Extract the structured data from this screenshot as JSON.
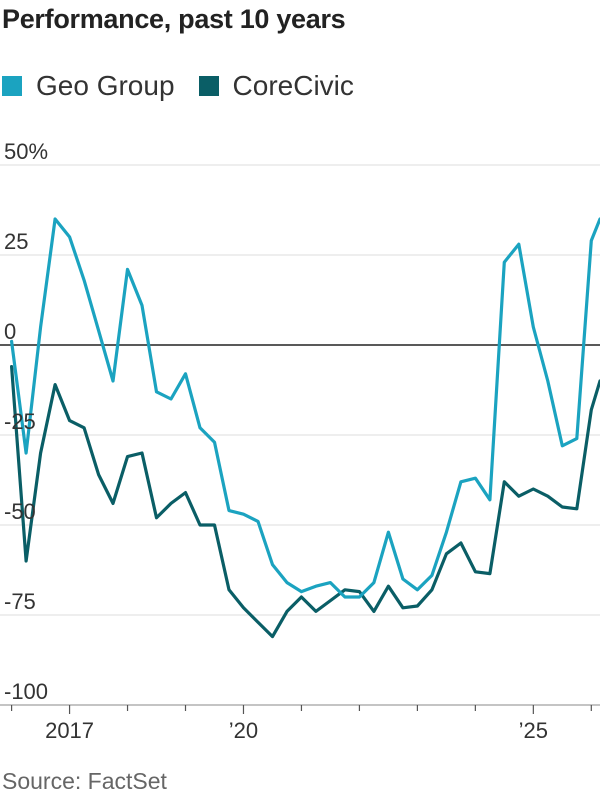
{
  "header": {
    "title": "Performance, past 10 years"
  },
  "footer": {
    "source": "Source: FactSet"
  },
  "colors": {
    "geo": "#1ba3c0",
    "corecivic": "#0a5e66",
    "grid": "#dddddd",
    "zero": "#222222",
    "axis": "#888888"
  },
  "chart_data": {
    "type": "line",
    "title": "Performance, past 10 years",
    "xlabel": "",
    "ylabel": "",
    "ylim": [
      -100,
      50
    ],
    "xlim": [
      2015.8,
      2026.15
    ],
    "y_ticks": [
      {
        "value": 50,
        "label": "50%"
      },
      {
        "value": 25,
        "label": "25"
      },
      {
        "value": 0,
        "label": "0"
      },
      {
        "value": -25,
        "label": "-25"
      },
      {
        "value": -50,
        "label": "-50"
      },
      {
        "value": -75,
        "label": "-75"
      },
      {
        "value": -100,
        "label": "-100"
      }
    ],
    "x_ticks": [
      {
        "value": 2017,
        "label": "2017"
      },
      {
        "value": 2020,
        "label": "’20"
      },
      {
        "value": 2025,
        "label": "’25"
      }
    ],
    "x_minor_ticks": [
      2016,
      2017,
      2018,
      2019,
      2020,
      2021,
      2022,
      2023,
      2024,
      2025,
      2026
    ],
    "legend": "top-left",
    "grid": true,
    "series": [
      {
        "name": "Geo Group",
        "color_key": "geo",
        "x": [
          2016.0,
          2016.25,
          2016.5,
          2016.75,
          2017.0,
          2017.25,
          2017.5,
          2017.75,
          2018.0,
          2018.25,
          2018.5,
          2018.75,
          2019.0,
          2019.25,
          2019.5,
          2019.75,
          2020.0,
          2020.25,
          2020.5,
          2020.75,
          2021.0,
          2021.25,
          2021.5,
          2021.75,
          2022.0,
          2022.25,
          2022.5,
          2022.75,
          2023.0,
          2023.25,
          2023.5,
          2023.75,
          2024.0,
          2024.25,
          2024.5,
          2024.75,
          2025.0,
          2025.25,
          2025.5,
          2025.75,
          2026.0,
          2026.25
        ],
        "y": [
          1,
          -30,
          5,
          35,
          30,
          18,
          4,
          -10,
          21,
          11,
          -13,
          -15,
          -8,
          -23,
          -27,
          -46,
          -47,
          -49,
          -61,
          -66,
          -68.5,
          -67,
          -66,
          -70,
          -70,
          -66,
          -52,
          -65,
          -68,
          -64,
          -52,
          -38,
          -37,
          -43,
          23,
          28,
          5,
          -10,
          -28,
          -26,
          29,
          35
        ]
      },
      {
        "name": "CoreCivic",
        "color_key": "corecivic",
        "x": [
          2016.0,
          2016.25,
          2016.5,
          2016.75,
          2017.0,
          2017.25,
          2017.5,
          2017.75,
          2018.0,
          2018.25,
          2018.5,
          2018.75,
          2019.0,
          2019.25,
          2019.5,
          2019.75,
          2020.0,
          2020.25,
          2020.5,
          2020.75,
          2021.0,
          2021.25,
          2021.5,
          2021.75,
          2022.0,
          2022.25,
          2022.5,
          2022.75,
          2023.0,
          2023.25,
          2023.5,
          2023.75,
          2024.0,
          2024.25,
          2024.5,
          2024.75,
          2025.0,
          2025.25,
          2025.5,
          2025.75,
          2026.0,
          2026.25
        ],
        "y": [
          -6,
          -60,
          -30,
          -11,
          -21,
          -23,
          -36,
          -44,
          -31,
          -30,
          -48,
          -44,
          -41,
          -50,
          -50,
          -68,
          -73,
          -77,
          -81,
          -74,
          -70,
          -74,
          -71,
          -68,
          -68.5,
          -74,
          -67,
          -73,
          -72.5,
          -68,
          -58,
          -55,
          -63,
          -63.5,
          -38,
          -42,
          -40,
          -42,
          -45,
          -45.5,
          -18,
          -10
        ]
      }
    ]
  }
}
